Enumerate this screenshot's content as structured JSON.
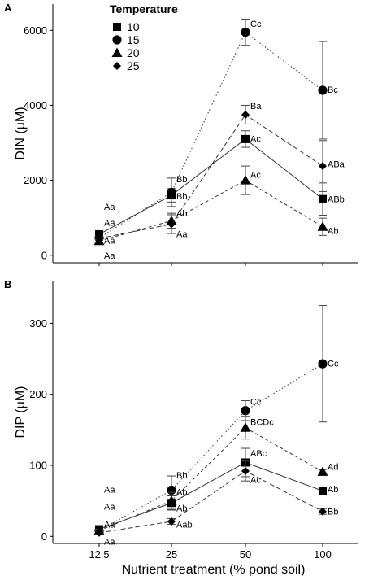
{
  "chart_data": [
    {
      "type": "line",
      "panel_label": "A",
      "ylabel": "DIN (μM)",
      "xlabel": "",
      "x_scale": "categorical",
      "categories": [
        "12.5",
        "25",
        "50",
        "100"
      ],
      "ylim": [
        -200,
        6700
      ],
      "yticks": [
        "0",
        "2000",
        "4000",
        "6000"
      ],
      "ytick_values": [
        0,
        2000,
        4000,
        6000
      ],
      "grid": false,
      "legend": {
        "title": "Temperature",
        "placement": "top-left",
        "entries": [
          "10",
          "15",
          "20",
          "25"
        ]
      },
      "series": [
        {
          "name": "10",
          "marker": "square",
          "line": "solid",
          "values": [
            560,
            1600,
            3100,
            1500
          ],
          "errors": [
            60,
            180,
            220,
            430
          ]
        },
        {
          "name": "15",
          "marker": "circle",
          "line": "dotted",
          "values": [
            460,
            1680,
            5950,
            4400
          ],
          "errors": [
            40,
            380,
            350,
            1300
          ]
        },
        {
          "name": "20",
          "marker": "triangle",
          "line": "dashed",
          "values": [
            380,
            920,
            2000,
            760
          ],
          "errors": [
            40,
            200,
            380,
            230
          ]
        },
        {
          "name": "25",
          "marker": "diamond",
          "line": "longdash",
          "values": [
            450,
            830,
            3750,
            2380
          ],
          "errors": [
            40,
            250,
            250,
            680
          ]
        }
      ],
      "annotations": [
        {
          "text": "Aa",
          "x": "12.5",
          "y": 1300
        },
        {
          "text": "Aa",
          "x": "12.5",
          "y": 870
        },
        {
          "text": "Aa",
          "x": "12.5",
          "y": 400
        },
        {
          "text": "Aa",
          "x": "12.5",
          "y": -10
        },
        {
          "text": "Bb",
          "x": "25",
          "y": 2030
        },
        {
          "text": "Bb",
          "x": "25",
          "y": 1580
        },
        {
          "text": "Ab",
          "x": "25",
          "y": 1120
        },
        {
          "text": "Aa",
          "x": "25",
          "y": 570
        },
        {
          "text": "Cc",
          "x": "50",
          "y": 6180
        },
        {
          "text": "Ba",
          "x": "50",
          "y": 3990
        },
        {
          "text": "Ac",
          "x": "50",
          "y": 3110
        },
        {
          "text": "Ac",
          "x": "50",
          "y": 2150
        },
        {
          "text": "Bc",
          "x": "100",
          "y": 4420
        },
        {
          "text": "ABa",
          "x": "100",
          "y": 2440
        },
        {
          "text": "ABb",
          "x": "100",
          "y": 1500
        },
        {
          "text": "Ab",
          "x": "100",
          "y": 660
        }
      ]
    },
    {
      "type": "line",
      "panel_label": "B",
      "ylabel": "DIP (μM)",
      "xlabel": "Nutrient treatment (% pond soil)",
      "x_scale": "categorical",
      "categories": [
        "12.5",
        "25",
        "50",
        "100"
      ],
      "ylim": [
        -10,
        360
      ],
      "yticks": [
        "0",
        "100",
        "200",
        "300"
      ],
      "ytick_values": [
        0,
        100,
        200,
        300
      ],
      "grid": false,
      "series": [
        {
          "name": "10",
          "marker": "square",
          "line": "solid",
          "values": [
            10,
            47,
            104,
            64
          ],
          "errors": [
            2,
            10,
            20,
            3
          ]
        },
        {
          "name": "15",
          "marker": "circle",
          "line": "dotted",
          "values": [
            8,
            65,
            177,
            243
          ],
          "errors": [
            2,
            20,
            14,
            82
          ]
        },
        {
          "name": "20",
          "marker": "triangle",
          "line": "dashed",
          "values": [
            8,
            50,
            153,
            91
          ],
          "errors": [
            2,
            12,
            16,
            3
          ]
        },
        {
          "name": "25",
          "marker": "diamond",
          "line": "longdash",
          "values": [
            5,
            21,
            92,
            35
          ],
          "errors": [
            2,
            4,
            14,
            4
          ]
        }
      ],
      "annotations": [
        {
          "text": "Aa",
          "x": "12.5",
          "y": 66
        },
        {
          "text": "Aa",
          "x": "12.5",
          "y": 42
        },
        {
          "text": "Aa",
          "x": "12.5",
          "y": 17
        },
        {
          "text": "Aa",
          "x": "12.5",
          "y": -7
        },
        {
          "text": "Bb",
          "x": "25",
          "y": 86
        },
        {
          "text": "Ab",
          "x": "25",
          "y": 63
        },
        {
          "text": "Ab",
          "x": "25",
          "y": 40
        },
        {
          "text": "Aab",
          "x": "25",
          "y": 17
        },
        {
          "text": "Cc",
          "x": "50",
          "y": 190
        },
        {
          "text": "BCDc",
          "x": "50",
          "y": 161
        },
        {
          "text": "ABc",
          "x": "50",
          "y": 117
        },
        {
          "text": "Ac",
          "x": "50",
          "y": 80
        },
        {
          "text": "Cc",
          "x": "100",
          "y": 244
        },
        {
          "text": "Ad",
          "x": "100",
          "y": 98
        },
        {
          "text": "Ab",
          "x": "100",
          "y": 67
        },
        {
          "text": "Bb",
          "x": "100",
          "y": 35
        }
      ]
    }
  ]
}
